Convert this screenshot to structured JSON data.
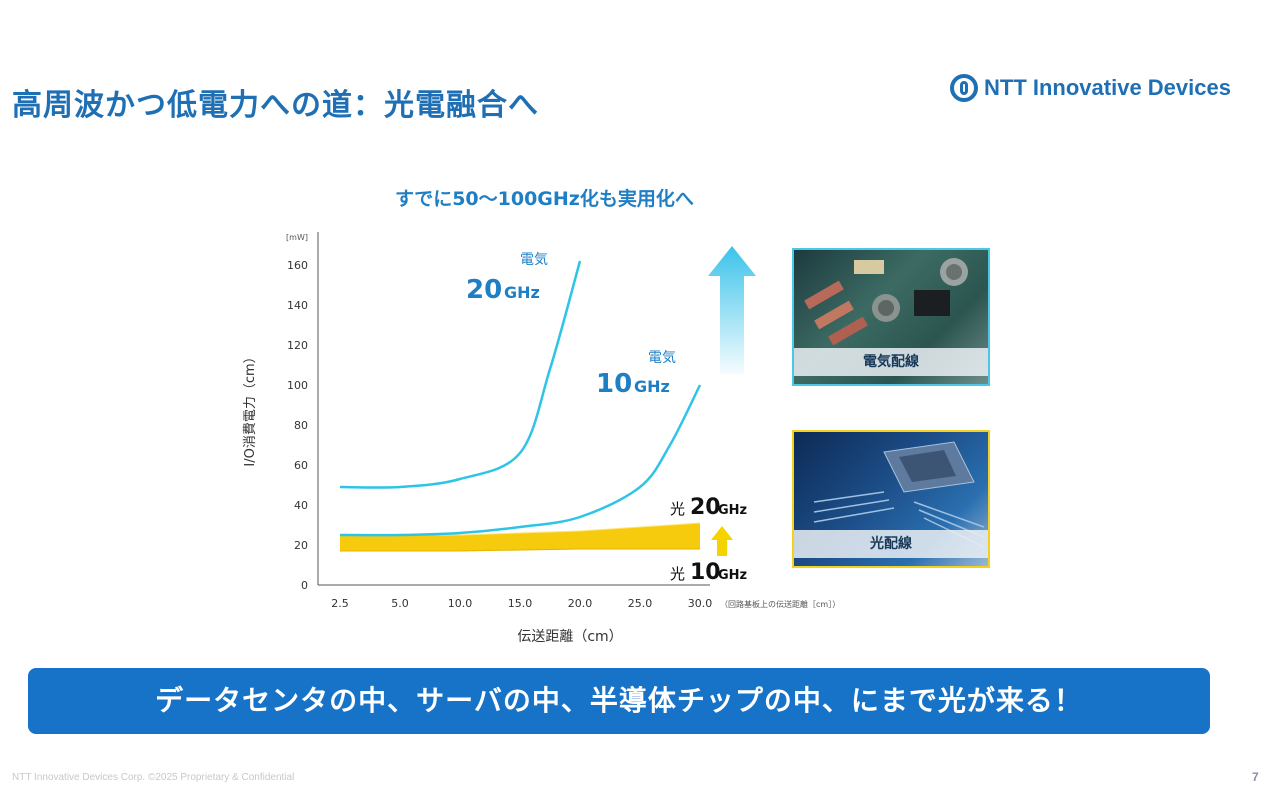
{
  "slide": {
    "title": "高周波かつ低電力への道：光電融合へ",
    "brand": "NTT Innovative Devices",
    "chart_heading": "すでに50〜100GHz化も実用化へ",
    "images": [
      {
        "label": "電気配線",
        "icon": "electrical-circuit-board-photo"
      },
      {
        "label": "光配線",
        "icon": "optical-chip-photo"
      }
    ],
    "banner": "データセンタの中、サーバの中、半導体チップの中、にまで光が来る！",
    "footer": "NTT Innovative Devices Corp. ©2025    Proprietary & Confidential",
    "page_number": "7",
    "colors": {
      "title": "#1f6fb5",
      "electric_line": "#2ec4e6",
      "optical_band": "#f5c800",
      "banner": "#1773c7",
      "arrow_up": "#4cc7e8",
      "arrow_small": "#f5d300"
    }
  },
  "chart_data": {
    "type": "line",
    "ylabel": "I/O消費電力（cm）",
    "yunit": "[mW]",
    "xlabel": "伝送距離（cm）",
    "xnote": "（回路基板上の伝送距離［cm］）",
    "x_ticks": [
      "2.5",
      "5.0",
      "10.0",
      "15.0",
      "20.0",
      "25.0",
      "30.0"
    ],
    "y_ticks": [
      "0",
      "20",
      "40",
      "60",
      "80",
      "100",
      "120",
      "140",
      "160"
    ],
    "ylim": [
      0,
      170
    ],
    "series": [
      {
        "label_top": "電気",
        "label_main": "20",
        "label_unit": "GHz",
        "x": [
          2.5,
          5.0,
          10.0,
          15.0,
          17.5,
          20.0
        ],
        "y": [
          49,
          49,
          53,
          66,
          108,
          162
        ]
      },
      {
        "label_top": "電気",
        "label_main": "10",
        "label_unit": "GHz",
        "x": [
          2.5,
          5.0,
          10.0,
          15.0,
          20.0,
          25.0,
          27.5,
          30.0
        ],
        "y": [
          25,
          25,
          26,
          29,
          34,
          49,
          70,
          100
        ]
      },
      {
        "label_top": "光",
        "label_main": "20",
        "label_unit": "GHz",
        "x": [
          2.5,
          10.0,
          20.0,
          30.0
        ],
        "y": [
          25,
          25,
          27,
          31
        ]
      },
      {
        "label_top": "光",
        "label_main": "10",
        "label_unit": "GHz",
        "x": [
          2.5,
          10.0,
          20.0,
          30.0
        ],
        "y": [
          17,
          17,
          18,
          18
        ]
      }
    ]
  }
}
